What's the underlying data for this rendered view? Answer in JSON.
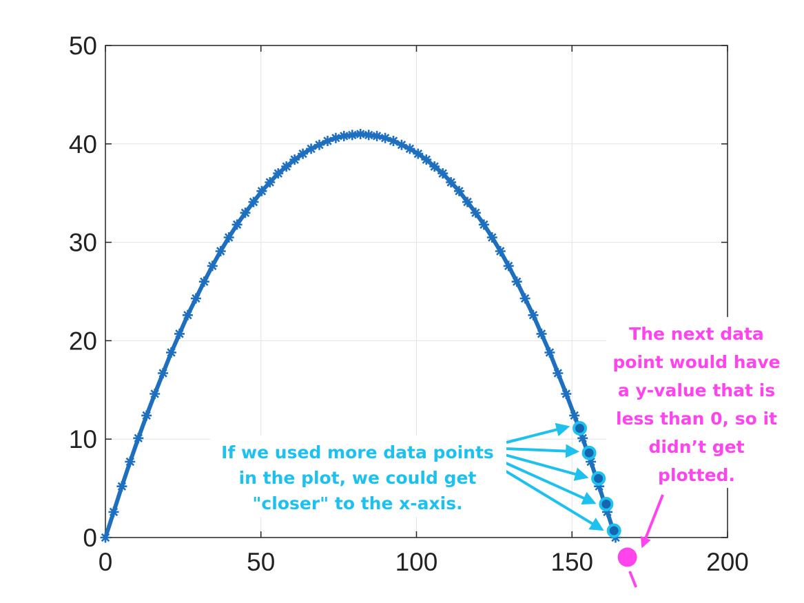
{
  "chart_data": {
    "type": "line",
    "title": "",
    "xlabel": "",
    "ylabel": "",
    "xlim": [
      0,
      200
    ],
    "ylim": [
      0,
      50
    ],
    "xticks": [
      "0",
      "50",
      "100",
      "150",
      "200"
    ],
    "yticks": [
      "0",
      "10",
      "20",
      "30",
      "40",
      "50"
    ],
    "grid": true,
    "series": [
      {
        "marker": "asterisk",
        "color": "#1f6fbf",
        "model": {
          "peak_x": 82,
          "peak_y": 41,
          "range_x": 164
        },
        "x": [
          0,
          2.65,
          5.29,
          7.94,
          10.58,
          13.23,
          15.87,
          18.52,
          21.16,
          23.81,
          26.45,
          29.1,
          31.74,
          34.39,
          37.03,
          39.68,
          42.32,
          44.97,
          47.61,
          50.26,
          52.9,
          55.55,
          58.19,
          60.84,
          63.48,
          66.13,
          68.77,
          71.42,
          74.06,
          76.71,
          79.35,
          82,
          84.65,
          87.29,
          89.94,
          92.58,
          95.23,
          97.87,
          100.52,
          103.16,
          105.81,
          108.45,
          111.1,
          113.74,
          116.39,
          119.03,
          121.68,
          124.32,
          126.97,
          129.61,
          132.26,
          134.9,
          137.55,
          140.19,
          142.84,
          145.48,
          148.13,
          150.77,
          153.42,
          156.06,
          158.71,
          161.35,
          164
        ],
        "y": [
          0,
          2.6,
          5.2,
          7.7,
          10.1,
          12.4,
          14.6,
          16.7,
          18.8,
          20.7,
          22.6,
          24.3,
          26,
          27.6,
          29.1,
          30.5,
          31.8,
          33,
          34.1,
          35.2,
          36.1,
          37,
          37.7,
          38.4,
          39,
          39.5,
          39.9,
          40.3,
          40.6,
          40.8,
          40.9,
          41,
          40.9,
          40.8,
          40.6,
          40.3,
          39.9,
          39.5,
          39,
          38.4,
          37.7,
          37,
          36.1,
          35.2,
          34.1,
          33,
          31.8,
          30.5,
          29.1,
          27.6,
          26,
          24.3,
          22.6,
          20.7,
          18.8,
          16.7,
          14.6,
          12.4,
          10.1,
          7.7,
          5.2,
          2.6,
          0
        ]
      }
    ],
    "extra_points": [
      {
        "x": 152.5,
        "y": 11.1
      },
      {
        "x": 155.5,
        "y": 8.6
      },
      {
        "x": 158.5,
        "y": 6.0
      },
      {
        "x": 161,
        "y": 3.4
      },
      {
        "x": 163.5,
        "y": 0.7
      }
    ],
    "next_point": {
      "x": 167.8,
      "y": -2.0
    },
    "annotations": {
      "cyan": [
        "If we used more data points",
        "in the plot, we could get",
        "\"closer\" to the x-axis."
      ],
      "pink": [
        "The next data",
        "point would have",
        "a y-value that is",
        "less than 0, so it",
        "didn’t get",
        "plotted."
      ]
    },
    "colors": {
      "line": "#1f6fbf",
      "cyan": "#1ec0ee",
      "pink": "#ff44ee",
      "grid": "#e3e3e3"
    }
  }
}
